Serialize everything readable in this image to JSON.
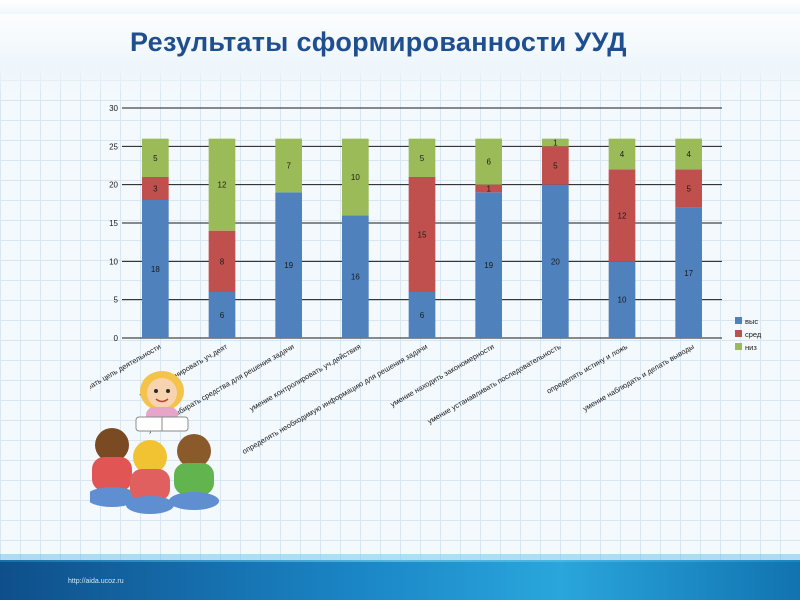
{
  "slide": {
    "title": "Результаты сформированности УУД",
    "footer_url": "http://aida.ucoz.ru"
  },
  "colors": {
    "series": [
      "#4f81bd",
      "#c0504d",
      "#9bbb59"
    ],
    "grid": "#1a1a1a",
    "tick_text": "#1a1a1a",
    "data_label": "#1a1a1a"
  },
  "icons": [
    "children-reading-illustration-icon"
  ],
  "chart_data": {
    "type": "bar",
    "stacked": true,
    "title": "",
    "xlabel": "",
    "ylabel": "",
    "ylim": [
      0,
      30
    ],
    "yticks": [
      0,
      5,
      10,
      15,
      20,
      25,
      30
    ],
    "grid": true,
    "legend_position": "right",
    "categories": [
      "умение выбирать цель деятельности",
      "умение планировать уч.деят",
      "умение выбирать средства для решения задачи",
      "умение контролировать уч.действия",
      "определять необходимую информацию для решения задачи",
      "умение находить закономерности",
      "умение устанавливать последовательность",
      "определять истину и ложь",
      "умение наблюдать и делать выводы"
    ],
    "series": [
      {
        "name": "выс",
        "values": [
          18,
          6,
          19,
          16,
          6,
          19,
          20,
          10,
          17
        ]
      },
      {
        "name": "сред",
        "values": [
          3,
          8,
          0,
          0,
          15,
          1,
          5,
          12,
          5
        ]
      },
      {
        "name": "низ",
        "values": [
          5,
          12,
          7,
          10,
          5,
          6,
          1,
          4,
          4
        ]
      }
    ]
  }
}
